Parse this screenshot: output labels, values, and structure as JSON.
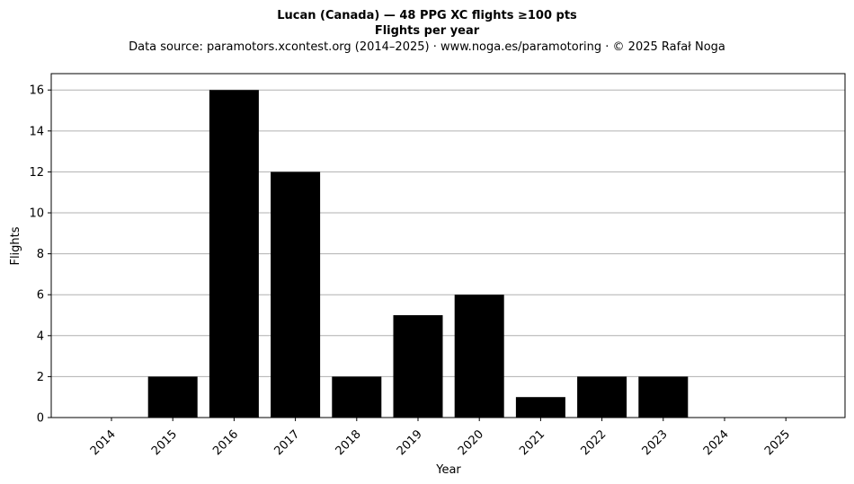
{
  "chart_data": {
    "type": "bar",
    "title": "Lucan (Canada)  —  48 PPG XC flights ≥100 pts",
    "subtitle": "Flights per year",
    "source_note": "Data source: paramotors.xcontest.org (2014–2025)  ·  www.noga.es/paramotoring  ·  © 2025 Rafał Noga",
    "xlabel": "Year",
    "ylabel": "Flights",
    "categories": [
      "2014",
      "2015",
      "2016",
      "2017",
      "2018",
      "2019",
      "2020",
      "2021",
      "2022",
      "2023",
      "2024",
      "2025"
    ],
    "values": [
      0,
      2,
      16,
      12,
      2,
      5,
      6,
      1,
      2,
      2,
      0,
      0
    ],
    "yticks": [
      0,
      2,
      4,
      6,
      8,
      10,
      12,
      14,
      16
    ],
    "ylim": [
      0,
      16.8
    ],
    "grid": "horizontal",
    "bar_color": "#000000",
    "grid_color": "#b0b0b0"
  }
}
